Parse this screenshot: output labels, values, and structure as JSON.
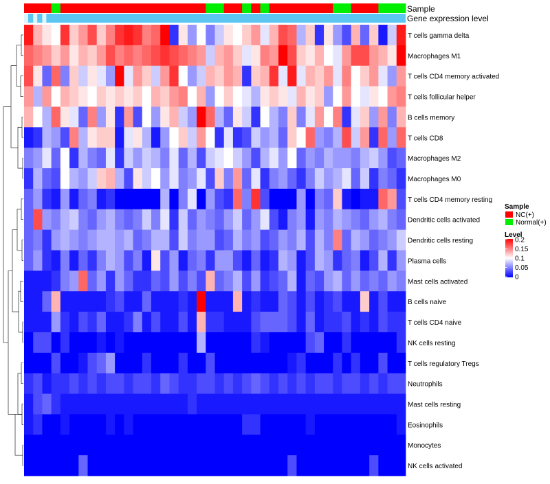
{
  "chart_data": {
    "type": "heatmap",
    "annotation_titles": {
      "sample": "Sample",
      "gene": "Gene expression level"
    },
    "legend": {
      "sample_title": "Sample",
      "sample_items": [
        {
          "label": "NC(+)",
          "color": "#ff0000"
        },
        {
          "label": "Normal(+)",
          "color": "#00ee00"
        }
      ],
      "level_title": "Level",
      "level_ticks": [
        "0.2",
        "0.15",
        "0.1",
        "0.05",
        "0"
      ],
      "level_tick_values": [
        0.2,
        0.15,
        0.1,
        0.05,
        0
      ]
    },
    "value_range": [
      0,
      0.2
    ],
    "colors": {
      "low": "#0000ff",
      "mid": "#ffffff",
      "high": "#ff0000",
      "nc": "#ff0000",
      "normal": "#00ee00",
      "gene_bar": "#5bc6f2",
      "gene_bar_light": "#dff4fc"
    },
    "sample_groups": [
      "NC",
      "NC",
      "NC",
      "Normal",
      "NC",
      "NC",
      "NC",
      "NC",
      "NC",
      "NC",
      "NC",
      "NC",
      "NC",
      "NC",
      "NC",
      "NC",
      "NC",
      "NC",
      "NC",
      "NC",
      "Normal",
      "Normal",
      "NC",
      "NC",
      "Normal",
      "NC",
      "Normal",
      "NC",
      "NC",
      "NC",
      "NC",
      "NC",
      "NC",
      "NC",
      "Normal",
      "Normal",
      "NC",
      "NC",
      "NC",
      "Normal",
      "Normal",
      "Normal"
    ],
    "rows": [
      "T cells gamma delta",
      "Macrophages M1",
      "T cells CD4 memory activated",
      "T cells follicular helper",
      "B cells memory",
      "T cells CD8",
      "Macrophages M2",
      "Macrophages M0",
      "T cells CD4 memory resting",
      "Dendritic cells activated",
      "Dendritic cells resting",
      "Plasma cells",
      "Mast cells activated",
      "B cells naive",
      "T cells CD4 naive",
      "NK cells resting",
      "T cells regulatory  Tregs",
      "Neutrophils",
      "Mast cells resting",
      "Eosinophils",
      "Monocytes",
      "NK cells activated"
    ],
    "values": [
      [
        0.19,
        0.13,
        0.11,
        0.1,
        0.18,
        0.12,
        0.14,
        0.17,
        0.12,
        0.15,
        0.18,
        0.19,
        0.18,
        0.15,
        0.16,
        0.2,
        0.02,
        0.11,
        0.06,
        0.1,
        0.05,
        0.08,
        0.11,
        0.1,
        0.12,
        0.14,
        0.09,
        0.13,
        0.17,
        0.16,
        0.07,
        0.12,
        0.02,
        0.11,
        0.06,
        0.03,
        0.13,
        0.04,
        0.12,
        0.01,
        0.08,
        0.19
      ],
      [
        0.16,
        0.15,
        0.14,
        0.12,
        0.14,
        0.11,
        0.13,
        0.12,
        0.14,
        0.17,
        0.15,
        0.16,
        0.15,
        0.16,
        0.17,
        0.18,
        0.17,
        0.16,
        0.15,
        0.14,
        0.08,
        0.13,
        0.14,
        0.12,
        0.09,
        0.11,
        0.15,
        0.14,
        0.2,
        0.17,
        0.12,
        0.11,
        0.13,
        0.1,
        0.09,
        0.14,
        0.17,
        0.17,
        0.14,
        0.13,
        0.11,
        0.2
      ],
      [
        0.17,
        0.11,
        0.04,
        0.16,
        0.05,
        0.12,
        0.08,
        0.11,
        0.09,
        0.06,
        0.2,
        0.09,
        0.14,
        0.12,
        0.08,
        0.14,
        0.18,
        0.1,
        0.06,
        0.08,
        0.13,
        0.12,
        0.14,
        0.13,
        0.02,
        0.12,
        0.13,
        0.18,
        0.09,
        0.19,
        0.09,
        0.13,
        0.12,
        0.14,
        0.09,
        0.15,
        0.1,
        0.12,
        0.14,
        0.09,
        0.06,
        0.14
      ],
      [
        0.14,
        0.07,
        0.14,
        0.1,
        0.13,
        0.12,
        0.11,
        0.1,
        0.12,
        0.11,
        0.12,
        0.11,
        0.12,
        0.1,
        0.13,
        0.12,
        0.14,
        0.15,
        0.1,
        0.13,
        0.06,
        0.1,
        0.12,
        0.1,
        0.09,
        0.07,
        0.11,
        0.12,
        0.11,
        0.09,
        0.13,
        0.11,
        0.12,
        0.06,
        0.1,
        0.14,
        0.1,
        0.09,
        0.11,
        0.1,
        0.14,
        0.15
      ],
      [
        0.13,
        0.1,
        0.07,
        0.16,
        0.11,
        0.09,
        0.04,
        0.15,
        0.06,
        0.11,
        0.02,
        0.14,
        0.03,
        0.1,
        0.06,
        0.11,
        0.13,
        0.08,
        0.06,
        0.2,
        0.16,
        0.07,
        0.04,
        0.11,
        0.08,
        0.02,
        0.1,
        0.07,
        0.05,
        0.12,
        0.05,
        0.09,
        0.14,
        0.1,
        0.15,
        0.02,
        0.09,
        0.12,
        0.06,
        0.14,
        0.05,
        0.13
      ],
      [
        0.01,
        0.02,
        0.07,
        0.06,
        0.03,
        0.15,
        0.07,
        0.11,
        0.12,
        0.12,
        0.01,
        0.09,
        0.11,
        0.07,
        0.01,
        0.06,
        0.1,
        0.12,
        0.08,
        0.14,
        0.1,
        0.02,
        0.09,
        0.02,
        0.03,
        0.08,
        0.06,
        0.07,
        0.04,
        0.12,
        0.1,
        0.16,
        0.06,
        0.05,
        0.07,
        0.17,
        0.08,
        0.14,
        0.02,
        0.16,
        0.06,
        0.16
      ],
      [
        0.05,
        0.06,
        0.09,
        0.04,
        0.1,
        0.02,
        0.07,
        0.05,
        0.04,
        0.09,
        0.02,
        0.08,
        0.06,
        0.08,
        0.07,
        0.05,
        0.09,
        0.04,
        0.07,
        0.03,
        0.08,
        0.09,
        0.1,
        0.08,
        0.06,
        0.03,
        0.07,
        0.09,
        0.06,
        0.1,
        0.04,
        0.06,
        0.05,
        0.07,
        0.06,
        0.06,
        0.05,
        0.07,
        0.08,
        0.06,
        0.03,
        0.04
      ],
      [
        0.02,
        0.07,
        0.04,
        0.03,
        0.1,
        0.07,
        0.06,
        0.08,
        0.12,
        0.13,
        0.07,
        0.03,
        0.11,
        0.08,
        0.1,
        0.06,
        0.09,
        0.05,
        0.06,
        0.09,
        0.03,
        0.12,
        0.05,
        0.14,
        0.04,
        0.09,
        0.02,
        0.05,
        0.06,
        0.04,
        0.02,
        0.05,
        0.08,
        0.06,
        0.07,
        0.09,
        0.04,
        0.08,
        0.02,
        0.05,
        0.04,
        0.02
      ],
      [
        0.04,
        0.06,
        0.02,
        0.01,
        0.06,
        0.01,
        0.04,
        0.05,
        0.01,
        0.02,
        0,
        0,
        0,
        0,
        0,
        0.07,
        0,
        0.05,
        0.09,
        0,
        0.06,
        0.03,
        0.02,
        0.16,
        0.05,
        0.18,
        0.03,
        0,
        0,
        0,
        0.06,
        0,
        0.05,
        0.04,
        0.12,
        0.01,
        0,
        0.01,
        0.01,
        0.16,
        0.14,
        0.03
      ],
      [
        0.04,
        0.17,
        0.06,
        0.05,
        0.07,
        0.08,
        0.05,
        0.04,
        0.06,
        0.07,
        0.05,
        0.04,
        0.05,
        0.08,
        0.05,
        0.09,
        0.02,
        0.08,
        0.04,
        0.06,
        0.05,
        0.04,
        0.06,
        0.08,
        0.04,
        0.06,
        0.09,
        0.03,
        0.01,
        0.05,
        0.06,
        0.01,
        0.06,
        0.05,
        0.07,
        0.06,
        0.05,
        0.04,
        0.06,
        0.07,
        0.05,
        0.04
      ],
      [
        0.04,
        0.05,
        0.02,
        0.06,
        0.07,
        0.06,
        0.05,
        0.06,
        0.07,
        0.07,
        0.06,
        0.07,
        0.04,
        0.05,
        0.07,
        0.07,
        0.03,
        0.08,
        0.05,
        0.06,
        0.06,
        0.03,
        0.04,
        0.07,
        0.05,
        0.06,
        0.03,
        0.04,
        0.06,
        0.05,
        0.07,
        0.03,
        0.07,
        0.05,
        0.15,
        0.04,
        0.07,
        0.06,
        0.04,
        0.05,
        0.06,
        0.08
      ],
      [
        0.04,
        0.06,
        0.02,
        0.01,
        0.05,
        0.01,
        0.04,
        0.02,
        0.05,
        0.07,
        0.06,
        0.03,
        0.05,
        0.01,
        0.11,
        0.03,
        0.06,
        0.01,
        0.04,
        0.05,
        0.02,
        0.06,
        0.06,
        0.03,
        0.01,
        0.04,
        0.01,
        0.02,
        0.07,
        0.06,
        0.01,
        0.03,
        0.07,
        0.06,
        0.02,
        0.04,
        0.05,
        0.01,
        0.03,
        0.07,
        0.02,
        0.06
      ],
      [
        0.01,
        0.01,
        0.01,
        0.02,
        0.05,
        0.06,
        0.16,
        0.04,
        0.06,
        0.02,
        0.06,
        0.04,
        0.02,
        0.02,
        0.04,
        0.03,
        0.06,
        0.03,
        0.05,
        0.03,
        0.13,
        0.04,
        0.05,
        0.07,
        0.03,
        0.06,
        0.02,
        0.03,
        0.04,
        0.07,
        0.01,
        0.04,
        0.03,
        0.06,
        0.07,
        0.04,
        0.06,
        0.04,
        0.05,
        0.04,
        0.06,
        0.05
      ],
      [
        0.01,
        0.01,
        0.04,
        0.13,
        0.01,
        0.01,
        0.01,
        0.01,
        0.01,
        0.02,
        0.03,
        0.01,
        0.01,
        0.04,
        0.01,
        0.01,
        0.01,
        0.02,
        0.01,
        0.2,
        0.01,
        0.01,
        0.01,
        0.13,
        0.01,
        0.02,
        0.01,
        0.01,
        0.04,
        0.03,
        0.01,
        0.03,
        0.01,
        0.02,
        0.03,
        0.01,
        0.01,
        0.12,
        0.01,
        0.03,
        0.01,
        0.01
      ],
      [
        0.01,
        0.01,
        0.01,
        0.06,
        0.02,
        0.01,
        0.03,
        0.02,
        0.04,
        0.01,
        0.01,
        0.02,
        0.05,
        0.01,
        0.03,
        0.01,
        0.01,
        0.03,
        0.01,
        0.13,
        0.02,
        0.02,
        0.01,
        0.01,
        0.01,
        0.03,
        0.04,
        0.04,
        0.04,
        0.03,
        0.01,
        0.04,
        0.01,
        0.02,
        0.02,
        0.03,
        0.01,
        0.02,
        0.01,
        0.03,
        0.02,
        0.02
      ],
      [
        0,
        0.03,
        0.03,
        0,
        0.02,
        0,
        0,
        0,
        0.01,
        0,
        0.01,
        0,
        0,
        0,
        0,
        0,
        0,
        0,
        0,
        0.07,
        0,
        0,
        0,
        0,
        0,
        0.02,
        0.01,
        0,
        0,
        0,
        0,
        0.03,
        0.04,
        0,
        0,
        0.02,
        0,
        0,
        0,
        0,
        0,
        0.02
      ],
      [
        0,
        0,
        0,
        0.03,
        0,
        0,
        0.01,
        0.03,
        0.04,
        0.06,
        0,
        0,
        0,
        0.02,
        0,
        0,
        0,
        0.02,
        0,
        0,
        0.03,
        0,
        0,
        0,
        0,
        0,
        0,
        0,
        0,
        0.01,
        0.02,
        0,
        0,
        0,
        0.02,
        0,
        0.02,
        0,
        0,
        0.03,
        0,
        0
      ],
      [
        0.02,
        0.03,
        0.01,
        0.02,
        0.02,
        0.03,
        0.02,
        0.03,
        0.02,
        0.03,
        0.03,
        0.02,
        0.03,
        0.03,
        0.02,
        0.04,
        0.03,
        0.02,
        0.02,
        0.03,
        0.03,
        0.02,
        0.03,
        0.02,
        0.03,
        0.04,
        0.03,
        0.02,
        0.03,
        0.02,
        0.03,
        0.02,
        0.03,
        0.03,
        0.02,
        0.03,
        0.03,
        0.02,
        0.03,
        0.02,
        0.03,
        0.03
      ],
      [
        0.01,
        0.03,
        0.04,
        0.02,
        0.01,
        0.01,
        0.01,
        0.01,
        0.01,
        0.01,
        0.01,
        0.01,
        0.01,
        0.01,
        0.01,
        0.01,
        0.01,
        0.01,
        0.02,
        0.01,
        0.01,
        0.01,
        0.01,
        0.01,
        0.01,
        0.01,
        0.01,
        0.01,
        0.01,
        0.01,
        0.01,
        0.01,
        0.01,
        0.01,
        0.01,
        0.01,
        0.01,
        0.01,
        0.01,
        0.01,
        0.01,
        0.01
      ],
      [
        0.01,
        0.02,
        0,
        0,
        0.01,
        0,
        0,
        0,
        0,
        0.01,
        0,
        0.01,
        0,
        0,
        0,
        0,
        0,
        0,
        0,
        0,
        0,
        0,
        0,
        0,
        0.02,
        0.02,
        0,
        0,
        0,
        0,
        0,
        0.01,
        0,
        0,
        0,
        0,
        0,
        0,
        0,
        0,
        0,
        0.01
      ],
      [
        0,
        0,
        0,
        0,
        0,
        0,
        0,
        0,
        0,
        0,
        0,
        0,
        0,
        0,
        0,
        0,
        0,
        0,
        0,
        0,
        0,
        0,
        0,
        0,
        0,
        0,
        0,
        0,
        0,
        0,
        0,
        0,
        0,
        0,
        0,
        0,
        0,
        0,
        0,
        0,
        0,
        0
      ],
      [
        0,
        0,
        0,
        0,
        0,
        0,
        0.04,
        0,
        0,
        0,
        0,
        0,
        0,
        0,
        0,
        0,
        0,
        0,
        0,
        0,
        0,
        0,
        0,
        0,
        0,
        0,
        0,
        0,
        0,
        0.03,
        0,
        0,
        0,
        0,
        0,
        0,
        0,
        0,
        0.03,
        0,
        0,
        0
      ]
    ]
  }
}
